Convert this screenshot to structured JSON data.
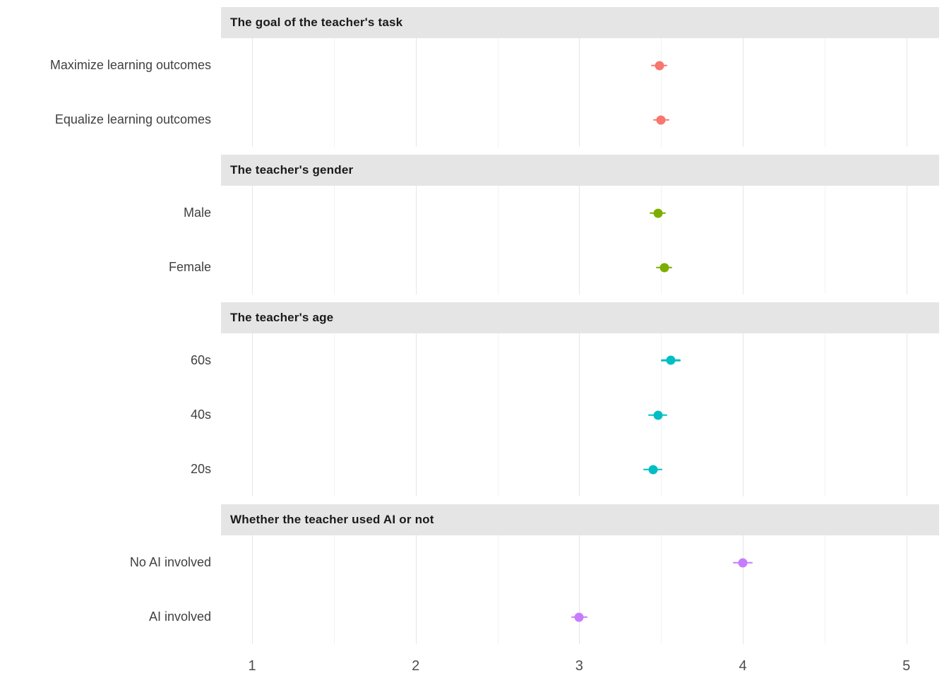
{
  "chart_data": {
    "type": "scatter",
    "subtype": "faceted-dot-plot-with-error-bars",
    "xlabel": "",
    "ylabel": "",
    "xlim": [
      0.81,
      5.2
    ],
    "x_ticks": [
      "1",
      "2",
      "3",
      "4",
      "5"
    ],
    "x_tick_values": [
      1,
      2,
      3,
      4,
      5
    ],
    "x_minor_tick_values": [
      1.5,
      2.5,
      3.5,
      4.5
    ],
    "grid": "vertical major and minor gridlines, white panel background",
    "legend_position": "none",
    "strip_background": "#E5E5E5",
    "panels": [
      {
        "title": "The goal of the teacher's task",
        "color": "#F8766D",
        "items": [
          {
            "label": "Maximize learning outcomes",
            "value": 3.49,
            "ci": 0.05
          },
          {
            "label": "Equalize learning outcomes",
            "value": 3.5,
            "ci": 0.05
          }
        ]
      },
      {
        "title": "The teacher's gender",
        "color": "#7CAE00",
        "items": [
          {
            "label": "Male",
            "value": 3.48,
            "ci": 0.05
          },
          {
            "label": "Female",
            "value": 3.52,
            "ci": 0.05
          }
        ]
      },
      {
        "title": "The teacher's age",
        "color": "#00BFC4",
        "items": [
          {
            "label": "60s",
            "value": 3.56,
            "ci": 0.06
          },
          {
            "label": "40s",
            "value": 3.48,
            "ci": 0.06
          },
          {
            "label": "20s",
            "value": 3.45,
            "ci": 0.06
          }
        ]
      },
      {
        "title": "Whether the teacher used AI or not",
        "color": "#C77CFF",
        "items": [
          {
            "label": "No AI involved",
            "value": 4.0,
            "ci": 0.06
          },
          {
            "label": "AI involved",
            "value": 3.0,
            "ci": 0.05
          }
        ]
      }
    ]
  }
}
